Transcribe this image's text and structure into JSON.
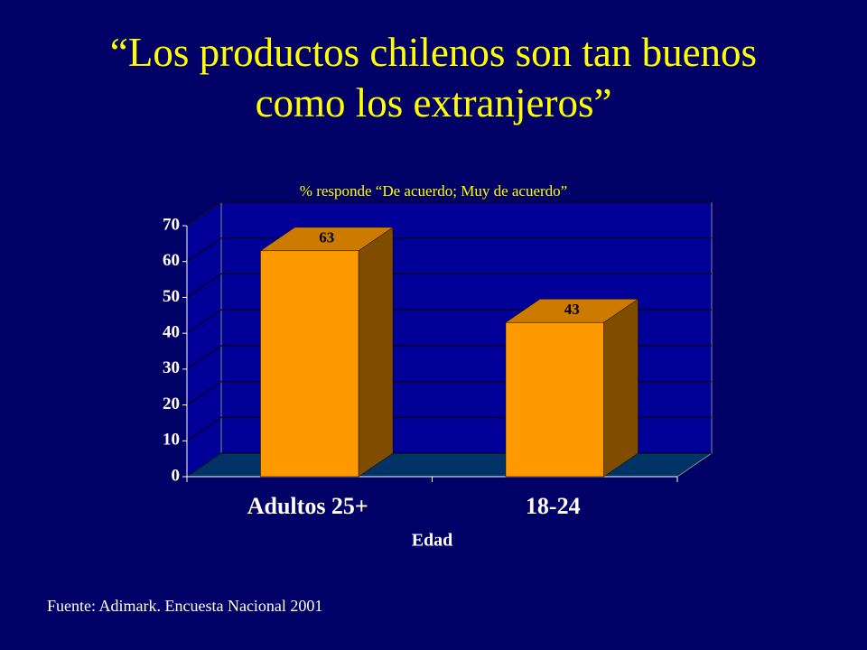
{
  "chart_data": {
    "type": "bar3d",
    "title": "“Los productos chilenos son tan buenos como los extranjeros”",
    "subtitle": "% responde “De acuerdo; Muy de acuerdo”",
    "categories": [
      "Adultos 25+",
      "18-24"
    ],
    "values": [
      63,
      43
    ],
    "color": "#ff9900",
    "x_label": "Edad",
    "ylim": [
      0,
      70
    ],
    "yticks": [
      0,
      10,
      20,
      30,
      40,
      50,
      60,
      70
    ],
    "grid": true
  },
  "footer": "Fuente: Adimark. Encuesta Nacional 2001"
}
